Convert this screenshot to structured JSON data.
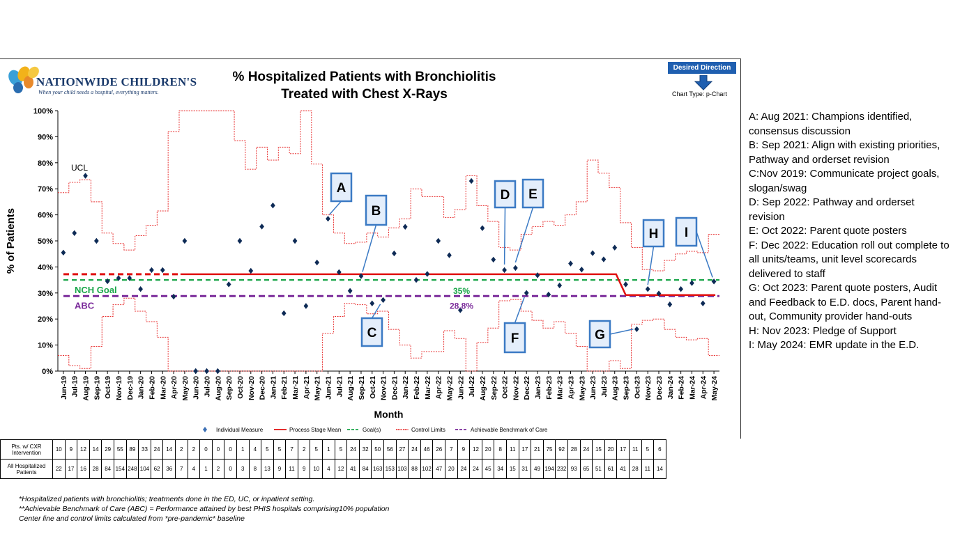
{
  "header": {
    "logo_name": "NATIONWIDE CHILDREN'S",
    "logo_tagline": "When your child needs a hospital, everything matters.",
    "title_line1": "% Hospitalized Patients with Bronchiolitis",
    "title_line2": "Treated with Chest X-Rays",
    "desired_direction": "Desired Direction",
    "chart_type": "Chart Type: p-Chart"
  },
  "colors": {
    "point": "#0d2a55",
    "mean": "#e01010",
    "goal": "#1aa64a",
    "control": "#e83030",
    "abc": "#7a2a9a",
    "callout_border": "#3b7ac4",
    "callout_fill": "#e4eefb",
    "desired": "#1f5fb0"
  },
  "chart_data": {
    "type": "line",
    "ylabel": "% of Patients",
    "xlabel": "Month",
    "ylim": [
      0,
      100
    ],
    "y_ticks": [
      "0%",
      "10%",
      "20%",
      "30%",
      "40%",
      "50%",
      "60%",
      "70%",
      "80%",
      "90%",
      "100%"
    ],
    "categories": [
      "Jun-19",
      "Jul-19",
      "Aug-19",
      "Sep-19",
      "Oct-19",
      "Nov-19",
      "Dec-19",
      "Jan-20",
      "Feb-20",
      "Mar-20",
      "Apr-20",
      "May-20",
      "Jun-20",
      "Jul-20",
      "Aug-20",
      "Sep-20",
      "Oct-20",
      "Nov-20",
      "Dec-20",
      "Jan-21",
      "Feb-21",
      "Mar-21",
      "Apr-21",
      "May-21",
      "Jun-21",
      "Jul-21",
      "Aug-21",
      "Sep-21",
      "Oct-21",
      "Nov-21",
      "Dec-21",
      "Jan-22",
      "Feb-22",
      "Mar-22",
      "Apr-22",
      "May-22",
      "Jun-22",
      "Jul-22",
      "Aug-22",
      "Sep-22",
      "Oct-22",
      "Nov-22",
      "Dec-22",
      "Jan-23",
      "Feb-23",
      "Mar-23",
      "Apr-23",
      "May-23",
      "Jun-23",
      "Jul-23",
      "Aug-23",
      "Sep-23",
      "Oct-23",
      "Nov-23",
      "Dec-23",
      "Jan-24",
      "Feb-24",
      "Mar-24",
      "Apr-24",
      "May-24"
    ],
    "series": [
      {
        "name": "Individual Measure",
        "values": [
          45.5,
          53,
          75,
          50,
          34.5,
          35.7,
          35.7,
          31.5,
          38.8,
          38.8,
          28.6,
          50,
          0,
          0,
          0,
          33.3,
          50,
          38.5,
          55.5,
          63.6,
          22.2,
          50,
          25,
          41.7,
          58.5,
          38,
          30.8,
          36.5,
          26,
          27.3,
          45.2,
          55.4,
          35,
          37.3,
          50,
          44.5,
          23.4,
          73,
          54.9,
          42.8,
          38.8,
          39.6,
          30,
          36.8,
          29.4,
          32.9,
          41.3,
          39,
          45.3,
          42.9,
          47.4,
          33.3,
          16.1,
          31.5,
          29.8,
          25.6,
          31.5,
          33.8,
          26,
          34.4
        ]
      }
    ],
    "mean_baseline": 37.2,
    "mean_stage2": 29.2,
    "goal": 35,
    "abc": 28.8,
    "ucl": [
      68.5,
      72.5,
      73.5,
      65,
      53,
      49,
      46.5,
      52,
      56,
      61.5,
      92,
      100,
      100,
      100,
      100,
      100,
      88.5,
      77.5,
      86,
      81,
      86,
      83.5,
      100,
      79.5,
      60,
      53,
      49,
      49.5,
      53,
      51.5,
      55,
      58.5,
      70,
      67,
      67,
      59,
      62,
      75,
      63.5,
      57.5,
      47.5,
      46.5,
      52.5,
      55.5,
      57.5,
      56,
      60,
      65,
      81,
      76,
      70.5,
      57,
      47.5,
      39,
      38.5,
      42.5,
      45,
      46,
      45.5,
      52.5
    ],
    "lcl": [
      6,
      2,
      1,
      9.5,
      21,
      25.5,
      28,
      23,
      19,
      13,
      0,
      0,
      0,
      0,
      0,
      0,
      0,
      0,
      0,
      0,
      0,
      0,
      0,
      0,
      14.5,
      21,
      26,
      25.5,
      22,
      23,
      16,
      10,
      5,
      7.5,
      7.5,
      15.5,
      12.5,
      0,
      11,
      16.5,
      27,
      27.5,
      23,
      19.5,
      16.5,
      19,
      14.5,
      9.5,
      0,
      0,
      4,
      1,
      18,
      19.5,
      20,
      16,
      13,
      12,
      12.5,
      6
    ],
    "annotations": [
      {
        "label": "UCL",
        "value": 73.5
      },
      {
        "label": "NCH Goal",
        "value": 35
      },
      {
        "label": "ABC",
        "value": 28.8
      },
      {
        "label": "35%",
        "value": 35
      },
      {
        "label": "28.8%",
        "value": 28.8
      }
    ],
    "callouts": [
      "A",
      "B",
      "C",
      "D",
      "E",
      "F",
      "G",
      "H",
      "I"
    ],
    "legend_position": "bottom",
    "legend": [
      "Individual Measure",
      "Process Stage Mean",
      "Goal(s)",
      "Control Limits",
      "Achievable Benchmark of Care"
    ]
  },
  "table": {
    "row1_label": "Pts. w/ CXR Intervention",
    "row2_label": "All Hospitalized Patients",
    "row1": [
      "10",
      "9",
      "12",
      "14",
      "29",
      "55",
      "89",
      "33",
      "24",
      "14",
      "2",
      "2",
      "0",
      "0",
      "0",
      "1",
      "4",
      "5",
      "5",
      "7",
      "2",
      "5",
      "1",
      "5",
      "24",
      "32",
      "50",
      "56",
      "27",
      "24",
      "46",
      "26",
      "7",
      "9",
      "12",
      "20",
      "8",
      "11",
      "17",
      "21",
      "75",
      "92",
      "28",
      "24",
      "15",
      "20",
      "17",
      "11",
      "5",
      "6"
    ],
    "row2": [
      "22",
      "17",
      "16",
      "28",
      "84",
      "154",
      "248",
      "104",
      "62",
      "36",
      "7",
      "4",
      "1",
      "2",
      "0",
      "3",
      "8",
      "13",
      "9",
      "11",
      "9",
      "10",
      "4",
      "12",
      "41",
      "84",
      "163",
      "153",
      "103",
      "88",
      "102",
      "47",
      "20",
      "24",
      "24",
      "45",
      "34",
      "15",
      "31",
      "49",
      "194",
      "232",
      "93",
      "65",
      "51",
      "61",
      "41",
      "28",
      "11",
      "14"
    ]
  },
  "notes": [
    "A: Aug 2021: Champions identified, consensus discussion",
    "B: Sep 2021: Align with existing priorities, Pathway and orderset revision",
    "C:Nov 2019: Communicate project goals, slogan/swag",
    "D: Sep 2022: Pathway and orderset revision",
    "E: Oct 2022: Parent quote posters",
    "F: Dec 2022: Education roll out complete to all units/teams, unit level scorecards delivered to staff",
    "G: Oct 2023: Parent quote posters, Audit and Feedback to E.D. docs, Parent hand-out, Community provider hand-outs",
    "H: Nov 2023: Pledge of Support",
    "I: May 2024: EMR update in the E.D."
  ],
  "footnotes": [
    "*Hospitalized patients with bronchiolitis; treatments done in the ED, UC, or inpatient setting.",
    "**Achievable Benchmark of Care (ABC) = Performance attained by best PHIS hospitals comprising10% population",
    "Center line and control limits calculated from *pre-pandemic* baseline"
  ]
}
